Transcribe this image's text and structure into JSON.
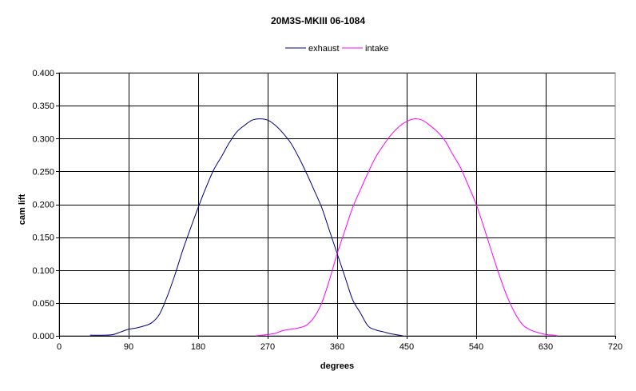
{
  "chart_data": {
    "type": "line",
    "title": "20M3S-MKIII 06-1084",
    "xlabel": "degrees",
    "ylabel": "cam lift",
    "xlim": [
      0,
      720
    ],
    "ylim": [
      0,
      0.4
    ],
    "x_ticks": [
      0,
      90,
      180,
      270,
      360,
      450,
      540,
      630,
      720
    ],
    "x_tick_labels": [
      "0",
      "90",
      "180",
      "270",
      "360",
      "450",
      "540",
      "630",
      "720"
    ],
    "y_ticks": [
      0,
      0.05,
      0.1,
      0.15,
      0.2,
      0.25,
      0.3,
      0.35,
      0.4
    ],
    "y_tick_labels": [
      "0.000",
      "0.050",
      "0.100",
      "0.150",
      "0.200",
      "0.250",
      "0.300",
      "0.350",
      "0.400"
    ],
    "grid": true,
    "legend_position": "top-center",
    "series": [
      {
        "name": "exhaust",
        "color": "#000080",
        "x": [
          40,
          60,
          70,
          80,
          90,
          100,
          110,
          120,
          130,
          140,
          150,
          160,
          170,
          180,
          190,
          200,
          210,
          220,
          230,
          240,
          250,
          260,
          270,
          280,
          290,
          300,
          310,
          320,
          330,
          340,
          350,
          360,
          370,
          380,
          390,
          400,
          410,
          420,
          430,
          440,
          445
        ],
        "y": [
          0.001,
          0.001,
          0.002,
          0.006,
          0.01,
          0.012,
          0.015,
          0.02,
          0.033,
          0.06,
          0.093,
          0.13,
          0.163,
          0.195,
          0.225,
          0.252,
          0.272,
          0.293,
          0.31,
          0.32,
          0.328,
          0.33,
          0.328,
          0.32,
          0.308,
          0.293,
          0.272,
          0.248,
          0.222,
          0.195,
          0.16,
          0.125,
          0.09,
          0.055,
          0.035,
          0.015,
          0.009,
          0.006,
          0.003,
          0.001,
          0.0
        ]
      },
      {
        "name": "intake",
        "color": "#ff00ff",
        "x": [
          255,
          270,
          280,
          290,
          300,
          310,
          320,
          330,
          340,
          350,
          360,
          370,
          380,
          390,
          400,
          410,
          420,
          430,
          440,
          450,
          460,
          470,
          480,
          490,
          500,
          510,
          520,
          530,
          540,
          550,
          560,
          570,
          580,
          590,
          600,
          610,
          620,
          630,
          640,
          645
        ],
        "y": [
          0.0,
          0.002,
          0.004,
          0.008,
          0.01,
          0.012,
          0.016,
          0.028,
          0.05,
          0.085,
          0.125,
          0.16,
          0.195,
          0.222,
          0.248,
          0.272,
          0.29,
          0.306,
          0.318,
          0.326,
          0.33,
          0.328,
          0.32,
          0.31,
          0.296,
          0.275,
          0.255,
          0.228,
          0.2,
          0.165,
          0.128,
          0.092,
          0.06,
          0.035,
          0.017,
          0.009,
          0.005,
          0.002,
          0.001,
          0.0
        ]
      }
    ]
  }
}
